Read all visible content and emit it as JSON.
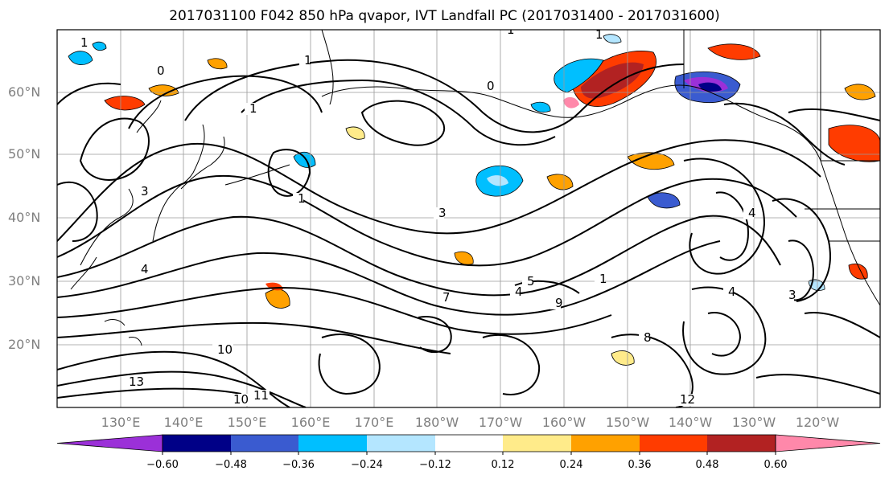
{
  "title": "2017031100 F042 850 hPa qvapor, IVT Landfall PC (2017031400 - 2017031600)",
  "lat_labels": [
    "60°N",
    "50°N",
    "40°N",
    "30°N",
    "20°N"
  ],
  "lon_labels": [
    "130°E",
    "140°E",
    "150°E",
    "160°E",
    "170°E",
    "180°W",
    "170°W",
    "160°W",
    "150°W",
    "140°W",
    "130°W",
    "120°W"
  ],
  "colorbar": {
    "tick_labels": [
      "−0.60",
      "−0.48",
      "−0.36",
      "−0.24",
      "−0.12",
      "0.12",
      "0.24",
      "0.36",
      "0.48",
      "0.60"
    ],
    "colors": [
      "#9b30d8",
      "#000087",
      "#3a5bd0",
      "#00bfff",
      "#b4e6ff",
      "#ffffff",
      "#ffeb8a",
      "#ffa100",
      "#ff3c00",
      "#b22222",
      "#ff88aa"
    ]
  },
  "contour_labels": [
    "1",
    "1",
    "1",
    "0",
    "0",
    "1",
    "1",
    "3",
    "3",
    "1",
    "4",
    "4",
    "5",
    "4",
    "9",
    "10",
    "11",
    "10",
    "7",
    "13",
    "12",
    "4",
    "3",
    "8",
    "1"
  ]
}
